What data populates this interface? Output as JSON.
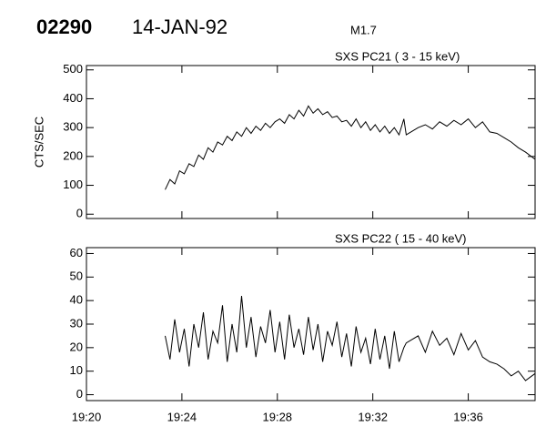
{
  "header": {
    "id": "02290",
    "date": "14-JAN-92",
    "class": "M1.7"
  },
  "chart_data": [
    {
      "type": "line",
      "subtitle": "SXS PC21  (  3 - 15 keV)",
      "y_label": "CTS/SEC",
      "color": "#000000",
      "xlim": [
        1160,
        1178.8
      ],
      "xticks": [
        1160,
        1164,
        1168,
        1172,
        1176
      ],
      "ylim": [
        -15,
        515
      ],
      "yticks": [
        0,
        100,
        200,
        300,
        400,
        500
      ],
      "x": [
        1163.3,
        1163.5,
        1163.7,
        1163.9,
        1164.1,
        1164.3,
        1164.5,
        1164.7,
        1164.9,
        1165.1,
        1165.3,
        1165.5,
        1165.7,
        1165.9,
        1166.1,
        1166.3,
        1166.5,
        1166.7,
        1166.9,
        1167.1,
        1167.3,
        1167.5,
        1167.7,
        1167.9,
        1168.1,
        1168.3,
        1168.5,
        1168.7,
        1168.9,
        1169.1,
        1169.3,
        1169.5,
        1169.7,
        1169.9,
        1170.1,
        1170.3,
        1170.5,
        1170.7,
        1170.9,
        1171.1,
        1171.3,
        1171.5,
        1171.7,
        1171.9,
        1172.1,
        1172.3,
        1172.5,
        1172.7,
        1172.9,
        1173.1,
        1173.3,
        1173.4,
        1173.9,
        1174.2,
        1174.5,
        1174.8,
        1175.1,
        1175.4,
        1175.7,
        1176.0,
        1176.3,
        1176.6,
        1176.9,
        1177.2,
        1177.5,
        1177.8,
        1178.1,
        1178.4,
        1178.8
      ],
      "values": [
        85,
        120,
        105,
        150,
        140,
        175,
        165,
        205,
        190,
        230,
        215,
        250,
        240,
        270,
        255,
        285,
        270,
        300,
        280,
        305,
        290,
        315,
        300,
        320,
        330,
        315,
        345,
        330,
        360,
        340,
        375,
        350,
        365,
        345,
        355,
        335,
        340,
        320,
        325,
        305,
        330,
        300,
        320,
        290,
        310,
        285,
        305,
        280,
        300,
        275,
        330,
        275,
        300,
        310,
        295,
        320,
        305,
        325,
        310,
        330,
        300,
        320,
        285,
        280,
        265,
        250,
        230,
        215,
        190
      ]
    },
    {
      "type": "line",
      "subtitle": "SXS PC22  ( 15 - 40 keV)",
      "color": "#000000",
      "xlim": [
        1160,
        1178.8
      ],
      "xticks": [
        {
          "value": 1160,
          "label": "19:20"
        },
        {
          "value": 1164,
          "label": "19:24"
        },
        {
          "value": 1168,
          "label": "19:28"
        },
        {
          "value": 1172,
          "label": "19:32"
        },
        {
          "value": 1176,
          "label": "19:36"
        }
      ],
      "ylim": [
        -2.5,
        62.5
      ],
      "yticks": [
        0,
        10,
        20,
        30,
        40,
        50,
        60
      ],
      "x": [
        1163.3,
        1163.5,
        1163.7,
        1163.9,
        1164.1,
        1164.3,
        1164.5,
        1164.7,
        1164.9,
        1165.1,
        1165.3,
        1165.5,
        1165.7,
        1165.9,
        1166.1,
        1166.3,
        1166.5,
        1166.7,
        1166.9,
        1167.1,
        1167.3,
        1167.5,
        1167.7,
        1167.9,
        1168.1,
        1168.3,
        1168.5,
        1168.7,
        1168.9,
        1169.1,
        1169.3,
        1169.5,
        1169.7,
        1169.9,
        1170.1,
        1170.3,
        1170.5,
        1170.7,
        1170.9,
        1171.1,
        1171.3,
        1171.5,
        1171.7,
        1171.9,
        1172.1,
        1172.3,
        1172.5,
        1172.7,
        1172.9,
        1173.1,
        1173.3,
        1173.4,
        1173.9,
        1174.2,
        1174.5,
        1174.8,
        1175.1,
        1175.4,
        1175.7,
        1176.0,
        1176.3,
        1176.6,
        1176.9,
        1177.2,
        1177.5,
        1177.8,
        1178.1,
        1178.4,
        1178.8
      ],
      "values": [
        25,
        15,
        32,
        18,
        28,
        12,
        30,
        20,
        35,
        15,
        27,
        22,
        38,
        14,
        30,
        18,
        42,
        20,
        33,
        16,
        29,
        22,
        36,
        18,
        31,
        15,
        34,
        20,
        28,
        17,
        33,
        19,
        30,
        14,
        27,
        21,
        31,
        16,
        26,
        12,
        29,
        18,
        24,
        13,
        28,
        15,
        25,
        11,
        27,
        14,
        20,
        22,
        25,
        18,
        27,
        21,
        24,
        17,
        26,
        19,
        23,
        16,
        14,
        13,
        11,
        8,
        10,
        6,
        9
      ]
    }
  ]
}
